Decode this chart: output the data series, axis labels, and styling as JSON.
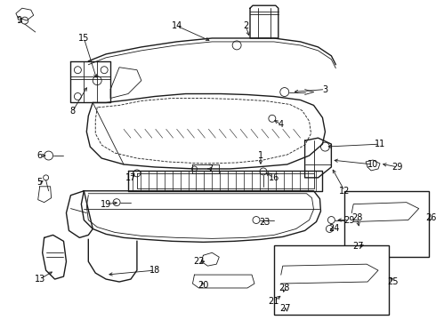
{
  "bg_color": "#ffffff",
  "fig_width": 4.9,
  "fig_height": 3.6,
  "dpi": 100,
  "line_color": "#1a1a1a",
  "label_fontsize": 7.0
}
